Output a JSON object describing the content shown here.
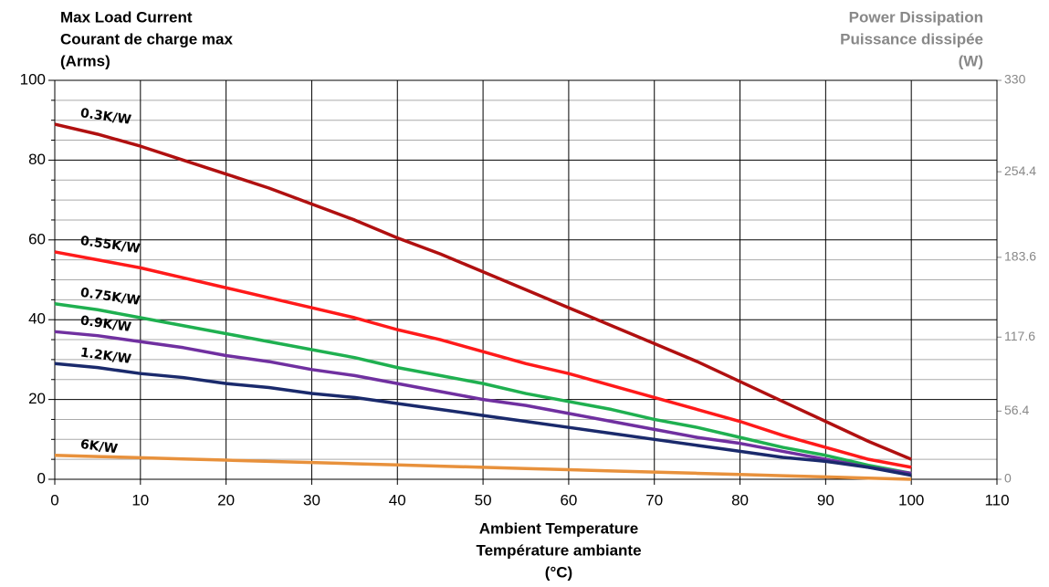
{
  "chart_data": {
    "type": "line",
    "y_title": [
      "Max Load Current",
      "Courant de charge max",
      "(Arms)"
    ],
    "y2_title": [
      "Power Dissipation",
      "Puissance dissipée",
      "(W)"
    ],
    "x_title": [
      "Ambient Temperature",
      "Température ambiante",
      "(°C)"
    ],
    "x": [
      0,
      5,
      10,
      15,
      20,
      25,
      30,
      35,
      40,
      45,
      50,
      55,
      60,
      65,
      70,
      75,
      80,
      85,
      90,
      95,
      100
    ],
    "series": [
      {
        "name": "0.3K/W",
        "color": "#b01010",
        "values": [
          89,
          86.5,
          83.5,
          80,
          76.5,
          73,
          69,
          65,
          60.5,
          56.5,
          52,
          47.5,
          43,
          38.5,
          34,
          29.5,
          24.5,
          19.5,
          14.5,
          9.5,
          5
        ]
      },
      {
        "name": "0.55K/W",
        "color": "#ff1a1a",
        "values": [
          57,
          55,
          53,
          50.5,
          48,
          45.5,
          43,
          40.5,
          37.5,
          35,
          32,
          29,
          26.5,
          23.5,
          20.5,
          17.5,
          14.5,
          11,
          8,
          5,
          3
        ]
      },
      {
        "name": "0.75K/W",
        "color": "#1fb050",
        "values": [
          44,
          42.5,
          40.5,
          38.5,
          36.5,
          34.5,
          32.5,
          30.5,
          28,
          26,
          24,
          21.5,
          19.5,
          17.5,
          15,
          13,
          10.5,
          8,
          6,
          3.5,
          1.5
        ]
      },
      {
        "name": "0.9K/W",
        "color": "#7030a0",
        "values": [
          37,
          36,
          34.5,
          33,
          31,
          29.5,
          27.5,
          26,
          24,
          22,
          20,
          18.5,
          16.5,
          14.5,
          12.5,
          10.5,
          9,
          7,
          5,
          3,
          1.5
        ]
      },
      {
        "name": "1.2K/W",
        "color": "#1a2a6c",
        "values": [
          29,
          28,
          26.5,
          25.5,
          24,
          23,
          21.5,
          20.5,
          19,
          17.5,
          16,
          14.5,
          13,
          11.5,
          10,
          8.5,
          7,
          5.5,
          4.5,
          3,
          1
        ]
      },
      {
        "name": "6K/W",
        "color": "#e8913c",
        "values": [
          6,
          5.7,
          5.4,
          5.1,
          4.8,
          4.5,
          4.2,
          3.9,
          3.6,
          3.3,
          3,
          2.7,
          2.4,
          2.1,
          1.8,
          1.5,
          1.2,
          0.9,
          0.6,
          0.3,
          0
        ]
      }
    ],
    "xlim": [
      0,
      110
    ],
    "xticks": [
      0,
      10,
      20,
      30,
      40,
      50,
      60,
      70,
      80,
      90,
      100,
      110
    ],
    "ylim": [
      0,
      100
    ],
    "yticks": [
      0,
      20,
      40,
      60,
      80,
      100
    ],
    "y2lim": [
      0,
      330
    ],
    "y2ticks": [
      0,
      56.4,
      117.6,
      183.6,
      254.4,
      330
    ],
    "grid": true
  }
}
